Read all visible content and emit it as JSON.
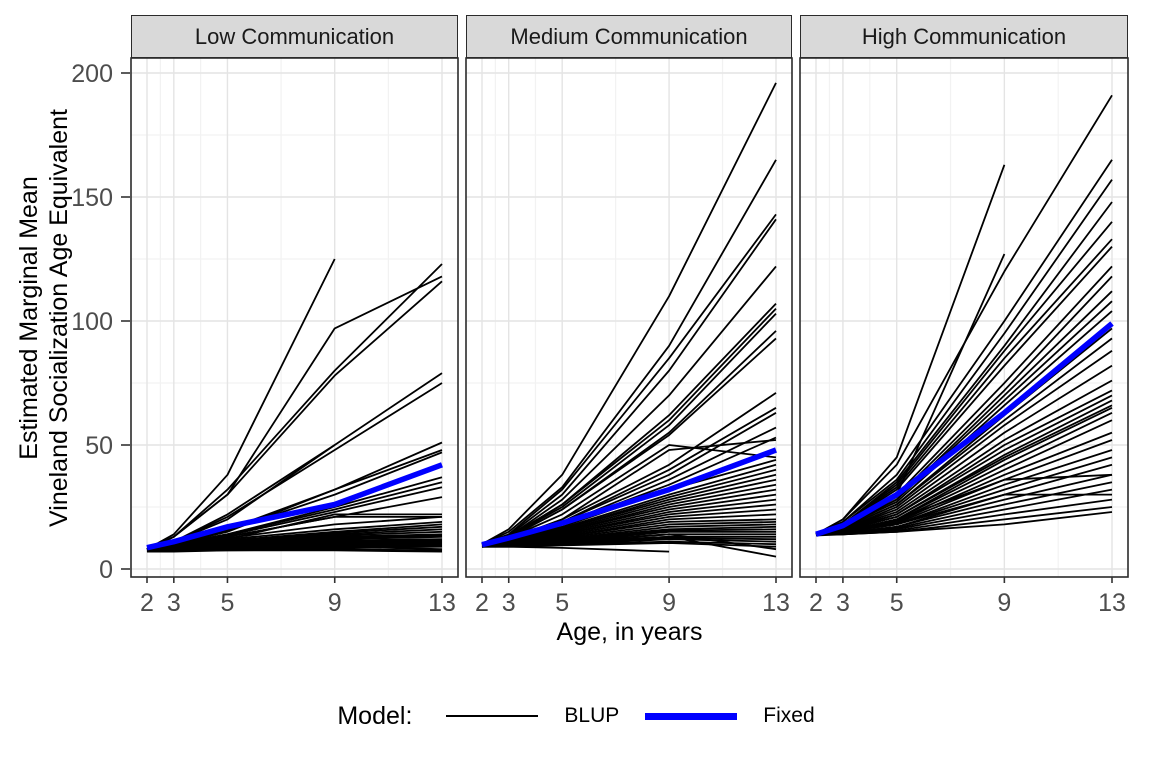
{
  "colors": {
    "background": "#FFFFFF",
    "panel_border": "#2B2B2B",
    "strip_background": "#D9D9D9",
    "grid_major": "#E4E4E4",
    "grid_minor": "#F2F2F2",
    "tick_color": "#333333",
    "tick_label": "#4D4D4D",
    "blup": "#000000",
    "fixed": "#0000FF"
  },
  "chart_data": {
    "type": "line",
    "title": "",
    "ages": [
      2,
      3,
      5,
      9,
      13
    ],
    "x": {
      "label": "Age, in years",
      "ticks": [
        2,
        3,
        5,
        9,
        13
      ],
      "minor_ticks": [
        2.5,
        4,
        7,
        11
      ],
      "range": [
        1.4,
        13.6
      ]
    },
    "y": {
      "label_lines": [
        "Estimated Marginal Mean",
        "Vineland Socialization Age Equivalent"
      ],
      "ticks": [
        0,
        50,
        100,
        150,
        200
      ],
      "minor_ticks": [
        25,
        75,
        125,
        175
      ],
      "range": [
        -3,
        206
      ]
    },
    "legend": {
      "title": "Model:",
      "entries": [
        {
          "label": "BLUP",
          "color": "#000000",
          "key_thickness_px": 2.5
        },
        {
          "label": "Fixed",
          "color": "#0000FF",
          "key_thickness_px": 7
        }
      ]
    },
    "facets": [
      {
        "title": "Low Communication",
        "fixed_line": [
          8.6,
          11,
          17,
          26,
          42
        ],
        "blup_lines": [
          [
            8,
            14,
            38,
            125,
            null
          ],
          [
            8,
            13,
            30,
            97,
            118
          ],
          [
            8,
            13,
            32,
            80,
            123
          ],
          [
            8,
            13,
            30,
            78,
            116
          ],
          [
            8,
            11,
            22,
            50,
            79
          ],
          [
            8,
            11,
            21,
            48,
            75
          ],
          [
            8,
            11,
            20,
            50,
            null
          ],
          [
            8,
            10,
            16,
            32,
            51
          ],
          [
            8,
            10,
            15,
            32,
            48
          ],
          [
            8,
            10,
            15.5,
            30,
            47
          ],
          [
            8,
            10,
            14,
            25,
            37
          ],
          [
            8,
            10,
            14,
            24,
            35
          ],
          [
            8,
            10,
            13.5,
            23,
            33
          ],
          [
            8,
            9.5,
            13,
            21,
            29
          ],
          [
            8,
            9.5,
            13,
            21,
            21
          ],
          [
            8,
            9,
            12,
            22,
            22
          ],
          [
            8,
            9.5,
            12.5,
            18,
            21
          ],
          [
            8,
            9,
            12,
            16,
            19
          ],
          [
            8,
            9,
            11.5,
            15,
            18
          ],
          [
            7.5,
            9,
            11,
            14.5,
            17
          ],
          [
            8,
            9,
            11,
            14,
            16
          ],
          [
            7.5,
            8.5,
            10.5,
            13.5,
            15
          ],
          [
            8,
            9,
            10.5,
            13,
            14
          ],
          [
            7.5,
            8.5,
            10,
            12.5,
            13.5
          ],
          [
            8,
            8.5,
            10,
            12,
            13
          ],
          [
            7.5,
            8.5,
            9.5,
            11.5,
            12
          ],
          [
            7.5,
            8,
            9.5,
            11,
            11.5
          ],
          [
            7,
            8,
            9,
            10.5,
            11
          ],
          [
            7.5,
            8,
            9,
            10,
            10.5
          ],
          [
            7,
            8,
            8.5,
            9.5,
            10
          ],
          [
            7,
            7.5,
            8.5,
            9,
            9.5
          ],
          [
            7,
            7.5,
            8,
            9,
            8
          ],
          [
            7,
            7.5,
            8,
            8.5,
            9
          ],
          [
            7,
            7.5,
            7.5,
            8,
            7.5
          ],
          [
            7,
            7,
            7.5,
            7.5,
            7
          ]
        ]
      },
      {
        "title": "Medium Communication",
        "fixed_line": [
          9.8,
          12.5,
          18.5,
          32,
          48
        ],
        "blup_lines": [
          [
            10,
            16,
            38,
            110,
            196
          ],
          [
            10,
            15,
            33,
            90,
            165
          ],
          [
            10,
            14,
            32,
            85,
            143
          ],
          [
            10,
            13.5,
            30,
            80,
            141
          ],
          [
            10,
            13,
            28,
            70,
            122
          ],
          [
            10,
            13,
            26,
            62,
            107
          ],
          [
            10,
            13,
            26,
            60,
            105
          ],
          [
            10,
            13,
            25,
            58,
            103
          ],
          [
            10,
            12.5,
            24,
            55,
            96
          ],
          [
            10,
            12.5,
            24,
            54,
            93
          ],
          [
            10,
            12,
            20,
            42,
            71
          ],
          [
            10,
            12,
            19,
            40,
            65
          ],
          [
            10,
            12,
            19,
            38,
            63
          ],
          [
            10,
            12,
            18,
            36,
            57
          ],
          [
            10,
            12,
            18,
            34,
            53
          ],
          [
            10,
            12.5,
            22,
            50,
            45
          ],
          [
            10,
            12,
            20,
            48,
            52
          ],
          [
            10,
            12,
            17,
            32,
            44
          ],
          [
            10,
            12,
            16.5,
            30,
            42
          ],
          [
            10,
            12,
            16,
            29,
            40
          ],
          [
            10,
            11.5,
            16,
            28,
            38
          ],
          [
            10,
            11.5,
            15.5,
            27,
            36
          ],
          [
            10,
            11.5,
            15,
            26,
            34
          ],
          [
            10,
            11,
            15,
            25,
            32
          ],
          [
            10,
            11,
            14.5,
            24,
            30
          ],
          [
            10,
            11,
            14,
            23,
            28
          ],
          [
            10,
            11,
            14,
            22,
            26
          ],
          [
            10,
            11,
            13.5,
            21,
            24
          ],
          [
            10,
            11,
            13,
            20,
            22
          ],
          [
            10,
            11,
            13,
            19,
            20
          ],
          [
            10,
            10.5,
            12.5,
            18,
            19
          ],
          [
            10,
            10.5,
            12,
            17,
            18
          ],
          [
            9.5,
            10.5,
            12,
            16,
            17
          ],
          [
            9.5,
            10,
            11.5,
            15.5,
            16
          ],
          [
            9.5,
            10,
            11,
            15,
            15
          ],
          [
            9.5,
            10,
            11,
            14,
            14
          ],
          [
            9,
            10,
            10.5,
            13,
            13
          ],
          [
            9,
            9.5,
            10.5,
            12.5,
            12
          ],
          [
            9,
            9.5,
            10,
            12,
            11
          ],
          [
            9,
            10,
            11,
            14,
            8
          ],
          [
            9,
            9.5,
            10,
            11,
            10
          ],
          [
            9,
            9,
            9.5,
            10.5,
            9
          ],
          [
            9,
            10,
            11,
            13,
            5
          ],
          [
            9,
            9,
            8.5,
            7,
            null
          ]
        ]
      },
      {
        "title": "High Communication",
        "fixed_line": [
          14,
          17.5,
          30,
          63,
          99
        ],
        "blup_lines": [
          [
            14,
            20,
            45,
            163,
            null
          ],
          [
            14,
            20,
            42,
            120,
            191
          ],
          [
            14,
            19,
            38,
            100,
            165
          ],
          [
            14,
            19,
            36,
            95,
            157
          ],
          [
            14,
            18,
            35,
            90,
            148
          ],
          [
            14,
            18,
            34,
            88,
            140
          ],
          [
            14,
            18,
            33,
            85,
            133
          ],
          [
            14,
            18,
            32,
            82,
            130
          ],
          [
            14,
            17,
            30,
            127,
            null
          ],
          [
            14,
            17,
            30,
            75,
            122
          ],
          [
            14,
            17,
            29,
            72,
            118
          ],
          [
            14,
            17,
            28,
            70,
            112
          ],
          [
            14,
            17,
            28,
            68,
            108
          ],
          [
            14,
            17,
            27,
            66,
            104
          ],
          [
            14,
            16.5,
            26,
            62,
            97
          ],
          [
            14,
            16.5,
            26,
            60,
            93
          ],
          [
            14,
            16,
            25,
            58,
            88
          ],
          [
            14,
            16,
            24,
            55,
            82
          ],
          [
            14,
            16,
            23,
            52,
            76
          ],
          [
            14,
            16,
            22,
            50,
            72
          ],
          [
            14,
            15.5,
            22,
            48,
            70
          ],
          [
            14,
            15.5,
            21,
            46,
            68
          ],
          [
            14,
            15.5,
            21,
            45,
            66
          ],
          [
            14,
            15,
            20,
            44,
            65
          ],
          [
            14,
            15,
            20,
            42,
            63
          ],
          [
            14,
            15,
            19.5,
            40,
            60
          ],
          [
            14,
            15,
            19,
            38,
            55
          ],
          [
            14,
            15,
            20,
            36,
            38
          ],
          [
            14,
            15,
            18.5,
            36,
            52
          ],
          [
            14,
            15,
            18,
            34,
            48
          ],
          [
            14,
            15,
            18,
            32,
            45
          ],
          [
            14,
            14.5,
            17,
            30,
            42
          ],
          [
            14,
            15,
            18,
            30,
            30
          ],
          [
            14,
            14.5,
            17,
            28,
            38
          ],
          [
            14,
            14.5,
            16.5,
            26,
            35
          ],
          [
            14,
            14.5,
            16,
            24,
            32
          ],
          [
            14,
            14,
            15.5,
            22,
            28
          ],
          [
            14,
            14,
            15,
            20,
            25
          ],
          [
            13.5,
            14,
            15,
            18,
            23
          ]
        ]
      }
    ]
  }
}
